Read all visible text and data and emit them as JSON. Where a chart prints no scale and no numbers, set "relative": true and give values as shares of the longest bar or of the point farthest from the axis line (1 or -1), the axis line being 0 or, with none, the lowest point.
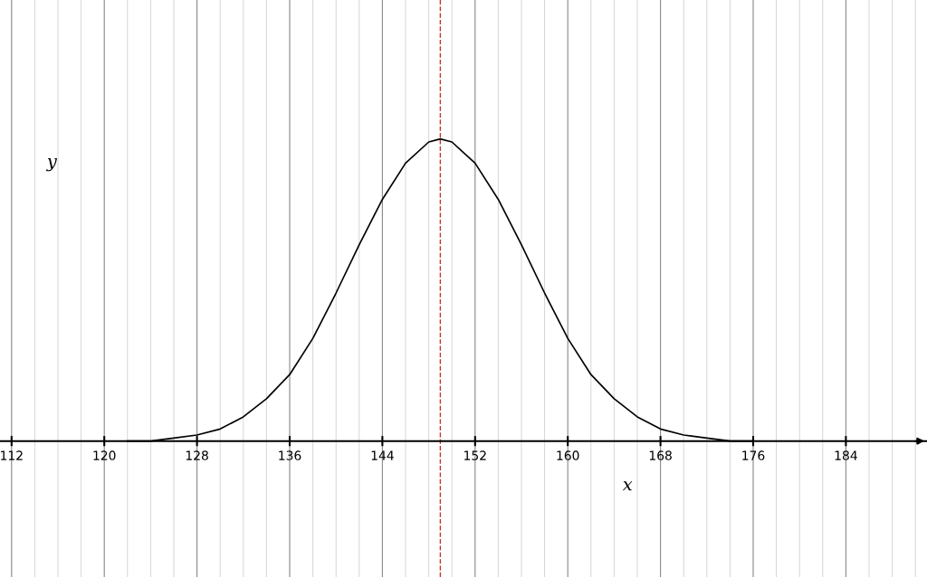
{
  "chart_data": {
    "type": "line",
    "relative": true,
    "xlabel": "x",
    "ylabel": "y",
    "x": [
      122,
      124,
      126,
      128,
      130,
      132,
      134,
      136,
      138,
      140,
      142,
      144,
      146,
      148,
      149,
      150,
      152,
      154,
      156,
      158,
      160,
      162,
      164,
      166,
      168,
      170,
      172,
      174,
      176
    ],
    "series": [
      {
        "color": "#000000",
        "values": [
          0.0,
          0.0,
          0.01,
          0.02,
          0.04,
          0.08,
          0.14,
          0.22,
          0.34,
          0.49,
          0.65,
          0.8,
          0.92,
          0.99,
          1.0,
          0.99,
          0.92,
          0.8,
          0.65,
          0.49,
          0.34,
          0.22,
          0.14,
          0.08,
          0.04,
          0.02,
          0.01,
          0.0,
          0.0
        ]
      }
    ],
    "xlim": [
      111,
      191
    ],
    "xticks": [
      112,
      120,
      128,
      136,
      144,
      152,
      160,
      168,
      176,
      184
    ],
    "ref_lines": [
      {
        "axis": "x",
        "value": 149,
        "color": "#c0392b",
        "line_style": "dashed"
      }
    ],
    "grid": true,
    "marker": "none",
    "line_style": "solid"
  }
}
